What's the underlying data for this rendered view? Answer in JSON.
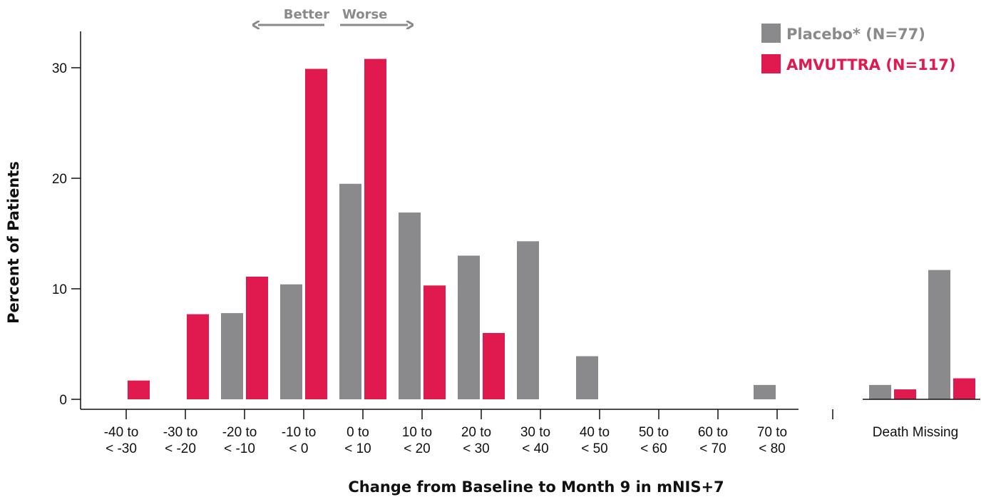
{
  "chart_data": {
    "type": "bar",
    "ylabel": "Percent of Patients",
    "xlabel": "Change from Baseline to Month 9 in mNIS+7",
    "ylim": [
      0,
      33
    ],
    "yticks": [
      0,
      10,
      20,
      30
    ],
    "grid": false,
    "legend_position": "top-right",
    "categories": [
      [
        "-40 to",
        "< -30"
      ],
      [
        "-30 to",
        "< -20"
      ],
      [
        "-20 to",
        "< -10"
      ],
      [
        "-10 to",
        "< 0"
      ],
      [
        "0 to",
        "< 10"
      ],
      [
        "10 to",
        "< 20"
      ],
      [
        "20 to",
        "< 30"
      ],
      [
        "30 to",
        "< 40"
      ],
      [
        "40 to",
        "< 50"
      ],
      [
        "50 to",
        "< 60"
      ],
      [
        "60 to",
        "< 70"
      ],
      [
        "70 to",
        "< 80"
      ]
    ],
    "extra_categories": [
      "Death",
      "Missing"
    ],
    "series": [
      {
        "name": "Placebo* (N=77)",
        "color": "#8a8a8c",
        "values": [
          0,
          0,
          7.8,
          10.4,
          19.5,
          16.9,
          13.0,
          14.3,
          3.9,
          0,
          0,
          1.3
        ],
        "extra_values": [
          1.3,
          11.7
        ]
      },
      {
        "name": "AMVUTTRA (N=117)",
        "color": "#e0194e",
        "values": [
          1.7,
          7.7,
          11.1,
          29.9,
          30.8,
          10.3,
          6.0,
          0,
          0,
          0,
          0,
          0
        ],
        "extra_values": [
          0.9,
          1.9
        ]
      }
    ],
    "annotations": {
      "better": "Better",
      "worse": "Worse",
      "arrow_color": "#8a8a8c"
    }
  }
}
